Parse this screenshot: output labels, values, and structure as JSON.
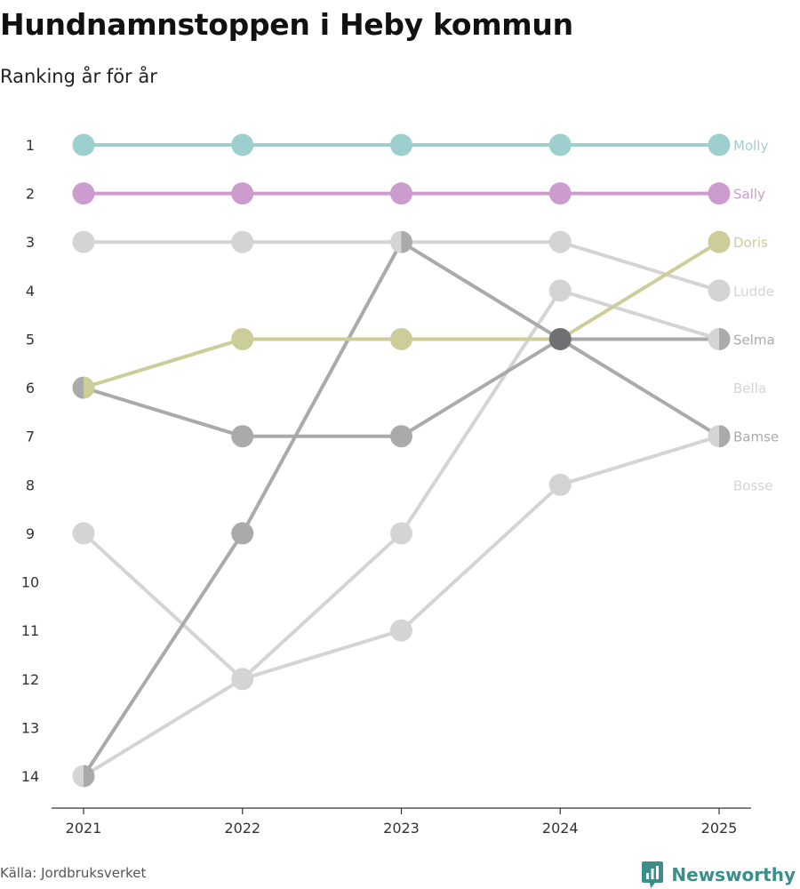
{
  "header": {
    "title": "Hundnamnstoppen i Heby kommun",
    "subtitle": "Ranking år för år"
  },
  "footer": {
    "source": "Källa: Jordbruksverket",
    "brand": "Newsworthy"
  },
  "colors": {
    "molly": "#9ecfcf",
    "sally": "#cc9ccf",
    "doris": "#cdcd9a",
    "gray_dark": "#aaaaaa",
    "gray_light": "#d4d4d4",
    "highlight_point": "#707074",
    "axis": "#333333",
    "brand": "#3a8f8a"
  },
  "chart_data": {
    "type": "line",
    "title": "Hundnamnstoppen i Heby kommun",
    "subtitle": "Ranking år för år",
    "xlabel": "",
    "ylabel": "",
    "x": [
      "2021",
      "2022",
      "2023",
      "2024",
      "2025"
    ],
    "y_ticks": [
      1,
      2,
      3,
      4,
      5,
      6,
      7,
      8,
      9,
      10,
      11,
      12,
      13,
      14
    ],
    "ylim": [
      1,
      14
    ],
    "y_inverted": true,
    "grid": false,
    "legend": "direct labels at right end",
    "series": [
      {
        "name": "Bosse",
        "color": "#d4d4d4",
        "values": [
          14,
          12,
          11,
          8,
          7
        ]
      },
      {
        "name": "Bella",
        "color": "#d4d4d4",
        "values": [
          9,
          12,
          9,
          4,
          5
        ]
      },
      {
        "name": "Ludde",
        "color": "#d4d4d4",
        "values": [
          3,
          3,
          3,
          3,
          4
        ]
      },
      {
        "name": "Bamse",
        "color": "#aaaaaa",
        "values": [
          14,
          9,
          3,
          5,
          7
        ]
      },
      {
        "name": "Selma",
        "color": "#aaaaaa",
        "values": [
          6,
          7,
          7,
          5,
          5
        ]
      },
      {
        "name": "Doris",
        "color": "#cdcd9a",
        "values": [
          6,
          5,
          5,
          5,
          3
        ]
      },
      {
        "name": "Sally",
        "color": "#cc9ccf",
        "values": [
          2,
          2,
          2,
          2,
          2
        ]
      },
      {
        "name": "Molly",
        "color": "#9ecfcf",
        "values": [
          1,
          1,
          1,
          1,
          1
        ]
      }
    ],
    "end_labels": [
      {
        "name": "Molly",
        "rank": 1,
        "color": "#9ecfcf"
      },
      {
        "name": "Sally",
        "rank": 2,
        "color": "#cc9ccf"
      },
      {
        "name": "Doris",
        "rank": 3,
        "color": "#cdcd9a"
      },
      {
        "name": "Ludde",
        "rank": 4,
        "color": "#d4d4d4"
      },
      {
        "name": "Selma",
        "rank": 5,
        "color": "#aaaaaa"
      },
      {
        "name": "Bella",
        "rank": 6,
        "color": "#d4d4d4"
      },
      {
        "name": "Bamse",
        "rank": 7,
        "color": "#aaaaaa"
      },
      {
        "name": "Bosse",
        "rank": 8,
        "color": "#d4d4d4"
      }
    ],
    "highlight_points": [
      {
        "x": "2024",
        "rank": 5
      }
    ]
  }
}
